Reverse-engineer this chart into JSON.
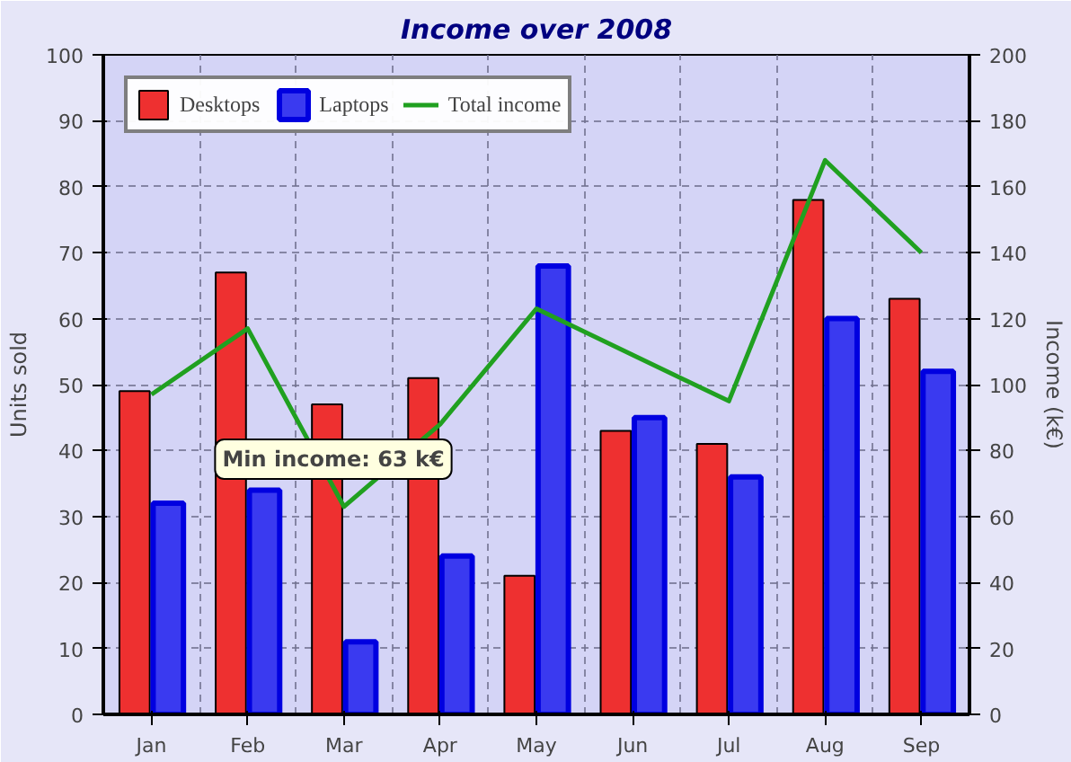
{
  "chart_data": {
    "type": "bar",
    "title": "Income over 2008",
    "ylabel": "Units sold",
    "y2label": "Income (k€)",
    "categories": [
      "Jan",
      "Feb",
      "Mar",
      "Apr",
      "May",
      "Jun",
      "Jul",
      "Aug",
      "Sep"
    ],
    "series": [
      {
        "name": "Desktops",
        "color": "#ee3030",
        "values": [
          49,
          67,
          47,
          51,
          21,
          43,
          41,
          78,
          63
        ]
      },
      {
        "name": "Laptops",
        "color": "#3a3af0",
        "values": [
          32,
          34,
          11,
          24,
          68,
          45,
          36,
          60,
          52
        ]
      },
      {
        "name": "Total income",
        "type": "line",
        "axis": "y2",
        "color": "#20a020",
        "values": [
          97,
          117,
          63,
          88,
          123,
          109,
          95,
          168,
          140
        ]
      }
    ],
    "ylim": [
      0,
      100
    ],
    "yticks": [
      0,
      10,
      20,
      30,
      40,
      50,
      60,
      70,
      80,
      90,
      100
    ],
    "y2lim": [
      0,
      200
    ],
    "y2ticks": [
      0,
      20,
      40,
      60,
      80,
      100,
      120,
      140,
      160,
      180,
      200
    ],
    "annotations": [
      "Min income: 63 k€"
    ],
    "grid": true,
    "legend": "top left"
  }
}
